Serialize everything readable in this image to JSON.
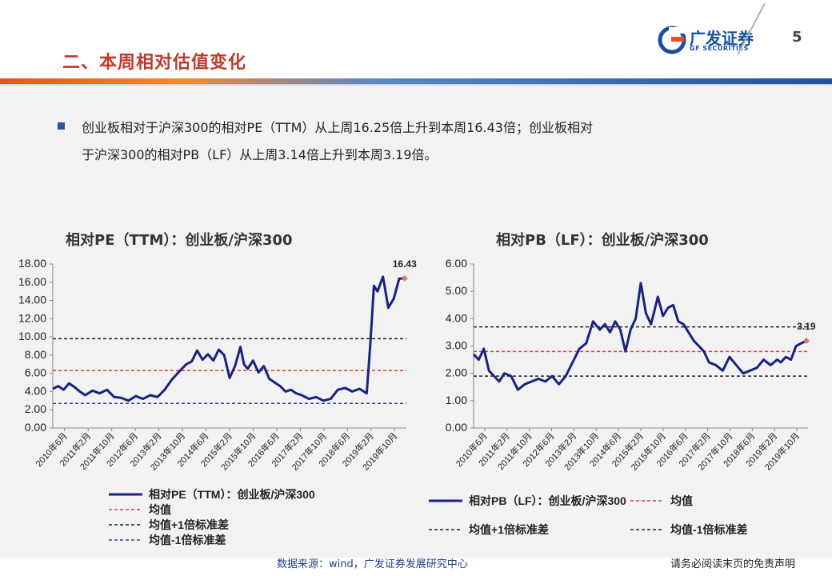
{
  "header": {
    "section_title": "二、本周相对估值变化",
    "logo_text": "广发证券",
    "logo_sub": "GF SECURITIES",
    "page_number": "5"
  },
  "summary": {
    "line1": "创业板相对于沪深300的相对PE（TTM）从上周16.25倍上升到本周16.43倍；创业板相对",
    "line2": "于沪深300的相对PB（LF）从上周3.14倍上升到本周3.19倍。"
  },
  "footer": {
    "source": "数据来源：wind，广发证券发展研究中心",
    "disclaimer": "请务必阅读末页的免责声明"
  },
  "colors": {
    "series": "#1a237e",
    "mean": "#e53935",
    "upper": "#222222",
    "lower": "#2e4a8c",
    "marker": "#e57373"
  },
  "chart_data": [
    {
      "type": "line",
      "title": "相对PE（TTM）：创业板/沪深300",
      "xlabel": "",
      "ylabel": "",
      "ylim": [
        0,
        18
      ],
      "yticks": [
        "18.00",
        "16.00",
        "14.00",
        "12.00",
        "10.00",
        "8.00",
        "6.00",
        "4.00",
        "2.00",
        "0.00"
      ],
      "ytick_values": [
        18,
        16,
        14,
        12,
        10,
        8,
        6,
        4,
        2,
        0
      ],
      "x_categories": [
        "2010年6月",
        "2011年2月",
        "2011年10月",
        "2012年6月",
        "2013年2月",
        "2013年10月",
        "2014年6月",
        "2015年2月",
        "2015年10月",
        "2016年6月",
        "2017年2月",
        "2017年10月",
        "2018年6月",
        "2019年2月",
        "2019年10月"
      ],
      "x_range": [
        2010.2,
        2020.0
      ],
      "series": [
        {
          "name": "相对PE（TTM）：创业板/沪深300",
          "x": [
            2010.2,
            2010.35,
            2010.5,
            2010.65,
            2010.8,
            2010.95,
            2011.1,
            2011.3,
            2011.5,
            2011.7,
            2011.9,
            2012.1,
            2012.3,
            2012.5,
            2012.7,
            2012.9,
            2013.1,
            2013.3,
            2013.5,
            2013.7,
            2013.9,
            2014.05,
            2014.2,
            2014.35,
            2014.5,
            2014.65,
            2014.8,
            2014.95,
            2015.1,
            2015.25,
            2015.4,
            2015.5,
            2015.6,
            2015.75,
            2015.9,
            2016.05,
            2016.2,
            2016.35,
            2016.5,
            2016.65,
            2016.8,
            2016.95,
            2017.1,
            2017.3,
            2017.5,
            2017.7,
            2017.9,
            2018.1,
            2018.3,
            2018.5,
            2018.7,
            2018.9,
            2019.0,
            2019.1,
            2019.2,
            2019.35,
            2019.5,
            2019.65,
            2019.8,
            2019.95
          ],
          "values": [
            4.3,
            4.6,
            4.2,
            4.9,
            4.5,
            4.0,
            3.6,
            4.1,
            3.8,
            4.2,
            3.4,
            3.3,
            3.0,
            3.5,
            3.2,
            3.6,
            3.4,
            4.2,
            5.3,
            6.2,
            7.0,
            7.3,
            8.5,
            7.5,
            8.1,
            7.4,
            8.6,
            8.0,
            5.5,
            6.8,
            8.9,
            7.0,
            6.5,
            7.4,
            6.1,
            6.8,
            5.4,
            5.0,
            4.6,
            4.0,
            4.2,
            3.8,
            3.6,
            3.2,
            3.4,
            3.0,
            3.2,
            4.2,
            4.4,
            4.0,
            4.3,
            3.8,
            9.2,
            15.6,
            15.0,
            16.6,
            13.2,
            14.2,
            16.4,
            16.43
          ]
        }
      ],
      "mean": 6.3,
      "mean_plus_1std": 9.8,
      "mean_minus_1std": 2.7,
      "last_value_label": "16.43",
      "legend": [
        {
          "label": "相对PE（TTM）：创业板/沪深300",
          "style": "series"
        },
        {
          "label": "均值",
          "style": "mean"
        },
        {
          "label": "均值+1倍标准差",
          "style": "upper"
        },
        {
          "label": "均值-1倍标准差",
          "style": "lower"
        }
      ],
      "legend_position": "bottom"
    },
    {
      "type": "line",
      "title": "相对PB（LF）：创业板/沪深300",
      "xlabel": "",
      "ylabel": "",
      "ylim": [
        0,
        6
      ],
      "yticks": [
        "6.00",
        "5.00",
        "4.00",
        "3.00",
        "2.00",
        "1.00",
        "0.00"
      ],
      "ytick_values": [
        6,
        5,
        4,
        3,
        2,
        1,
        0
      ],
      "x_categories": [
        "2010年6月",
        "2011年2月",
        "2011年10月",
        "2012年6月",
        "2013年2月",
        "2013年10月",
        "2014年6月",
        "2015年2月",
        "2015年10月",
        "2016年6月",
        "2017年2月",
        "2017年10月",
        "2018年6月",
        "2019年2月",
        "2019年10月"
      ],
      "x_range": [
        2010.2,
        2020.0
      ],
      "series": [
        {
          "name": "相对PB（LF）：创业板/沪深300",
          "x": [
            2010.2,
            2010.35,
            2010.5,
            2010.65,
            2010.8,
            2010.95,
            2011.1,
            2011.3,
            2011.5,
            2011.7,
            2011.9,
            2012.1,
            2012.3,
            2012.5,
            2012.7,
            2012.9,
            2013.1,
            2013.3,
            2013.5,
            2013.7,
            2013.9,
            2014.05,
            2014.2,
            2014.35,
            2014.5,
            2014.65,
            2014.8,
            2014.95,
            2015.1,
            2015.25,
            2015.4,
            2015.5,
            2015.6,
            2015.75,
            2015.9,
            2016.05,
            2016.2,
            2016.35,
            2016.5,
            2016.65,
            2016.8,
            2016.95,
            2017.1,
            2017.3,
            2017.5,
            2017.7,
            2017.9,
            2018.1,
            2018.3,
            2018.5,
            2018.7,
            2018.9,
            2019.0,
            2019.1,
            2019.2,
            2019.35,
            2019.5,
            2019.65,
            2019.8,
            2019.95
          ],
          "values": [
            2.7,
            2.5,
            2.9,
            2.1,
            1.9,
            1.7,
            2.0,
            1.9,
            1.4,
            1.6,
            1.7,
            1.8,
            1.7,
            1.9,
            1.6,
            1.9,
            2.4,
            2.9,
            3.1,
            3.9,
            3.6,
            3.8,
            3.5,
            3.9,
            3.6,
            2.8,
            3.6,
            4.0,
            5.3,
            4.2,
            3.8,
            4.3,
            4.8,
            4.1,
            4.4,
            4.5,
            3.9,
            3.8,
            3.5,
            3.2,
            3.0,
            2.8,
            2.4,
            2.3,
            2.1,
            2.6,
            2.3,
            2.0,
            2.1,
            2.2,
            2.5,
            2.3,
            2.4,
            2.5,
            2.4,
            2.6,
            2.5,
            3.0,
            3.1,
            3.19
          ]
        }
      ],
      "mean": 2.8,
      "mean_plus_1std": 3.7,
      "mean_minus_1std": 1.9,
      "last_value_label": "3.19",
      "legend": [
        {
          "label": "相对PB（LF）：创业板/沪深300",
          "style": "series"
        },
        {
          "label": "均值",
          "style": "mean"
        },
        {
          "label": "均值+1倍标准差",
          "style": "upper"
        },
        {
          "label": "均值-1倍标准差",
          "style": "upper"
        }
      ],
      "legend_position": "bottom"
    }
  ]
}
